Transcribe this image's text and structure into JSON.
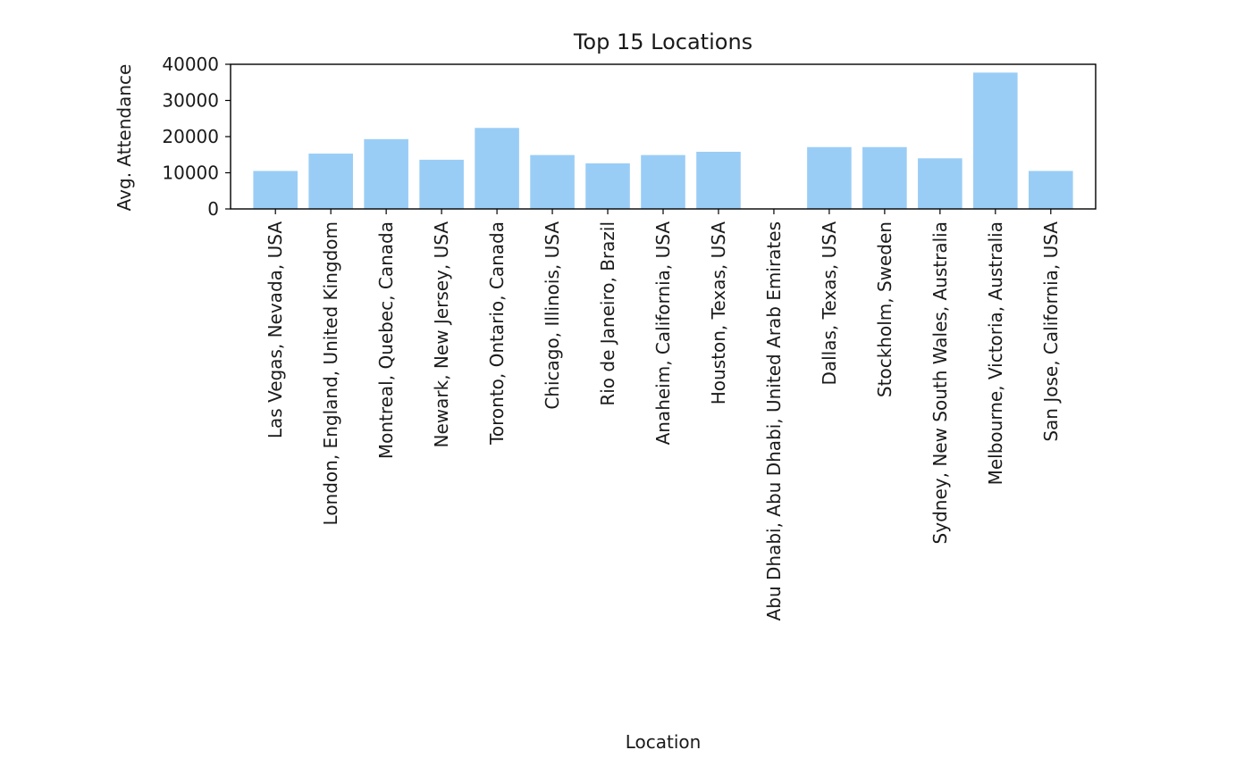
{
  "chart_data": {
    "type": "bar",
    "title": "Top 15 Locations",
    "xlabel": "Location",
    "ylabel": "Avg. Attendance",
    "categories": [
      "Las Vegas, Nevada, USA",
      "London, England, United Kingdom",
      "Montreal, Quebec, Canada",
      "Newark, New Jersey, USA",
      "Toronto, Ontario, Canada",
      "Chicago, Illinois, USA",
      "Rio de Janeiro, Brazil",
      "Anaheim, California, USA",
      "Houston, Texas, USA",
      "Abu Dhabi, Abu Dhabi, United Arab Emirates",
      "Dallas, Texas, USA",
      "Stockholm, Sweden",
      "Sydney, New South Wales, Australia",
      "Melbourne, Victoria, Australia",
      "San Jose, California, USA"
    ],
    "values": [
      10500,
      15300,
      19300,
      13600,
      22400,
      14900,
      12600,
      14900,
      15800,
      0,
      17100,
      17100,
      14000,
      37700,
      10500
    ],
    "ylim": [
      0,
      40000
    ],
    "yticks": [
      0,
      10000,
      20000,
      30000,
      40000
    ],
    "bar_color": "#99cdf6",
    "grid": false,
    "legend": false
  }
}
